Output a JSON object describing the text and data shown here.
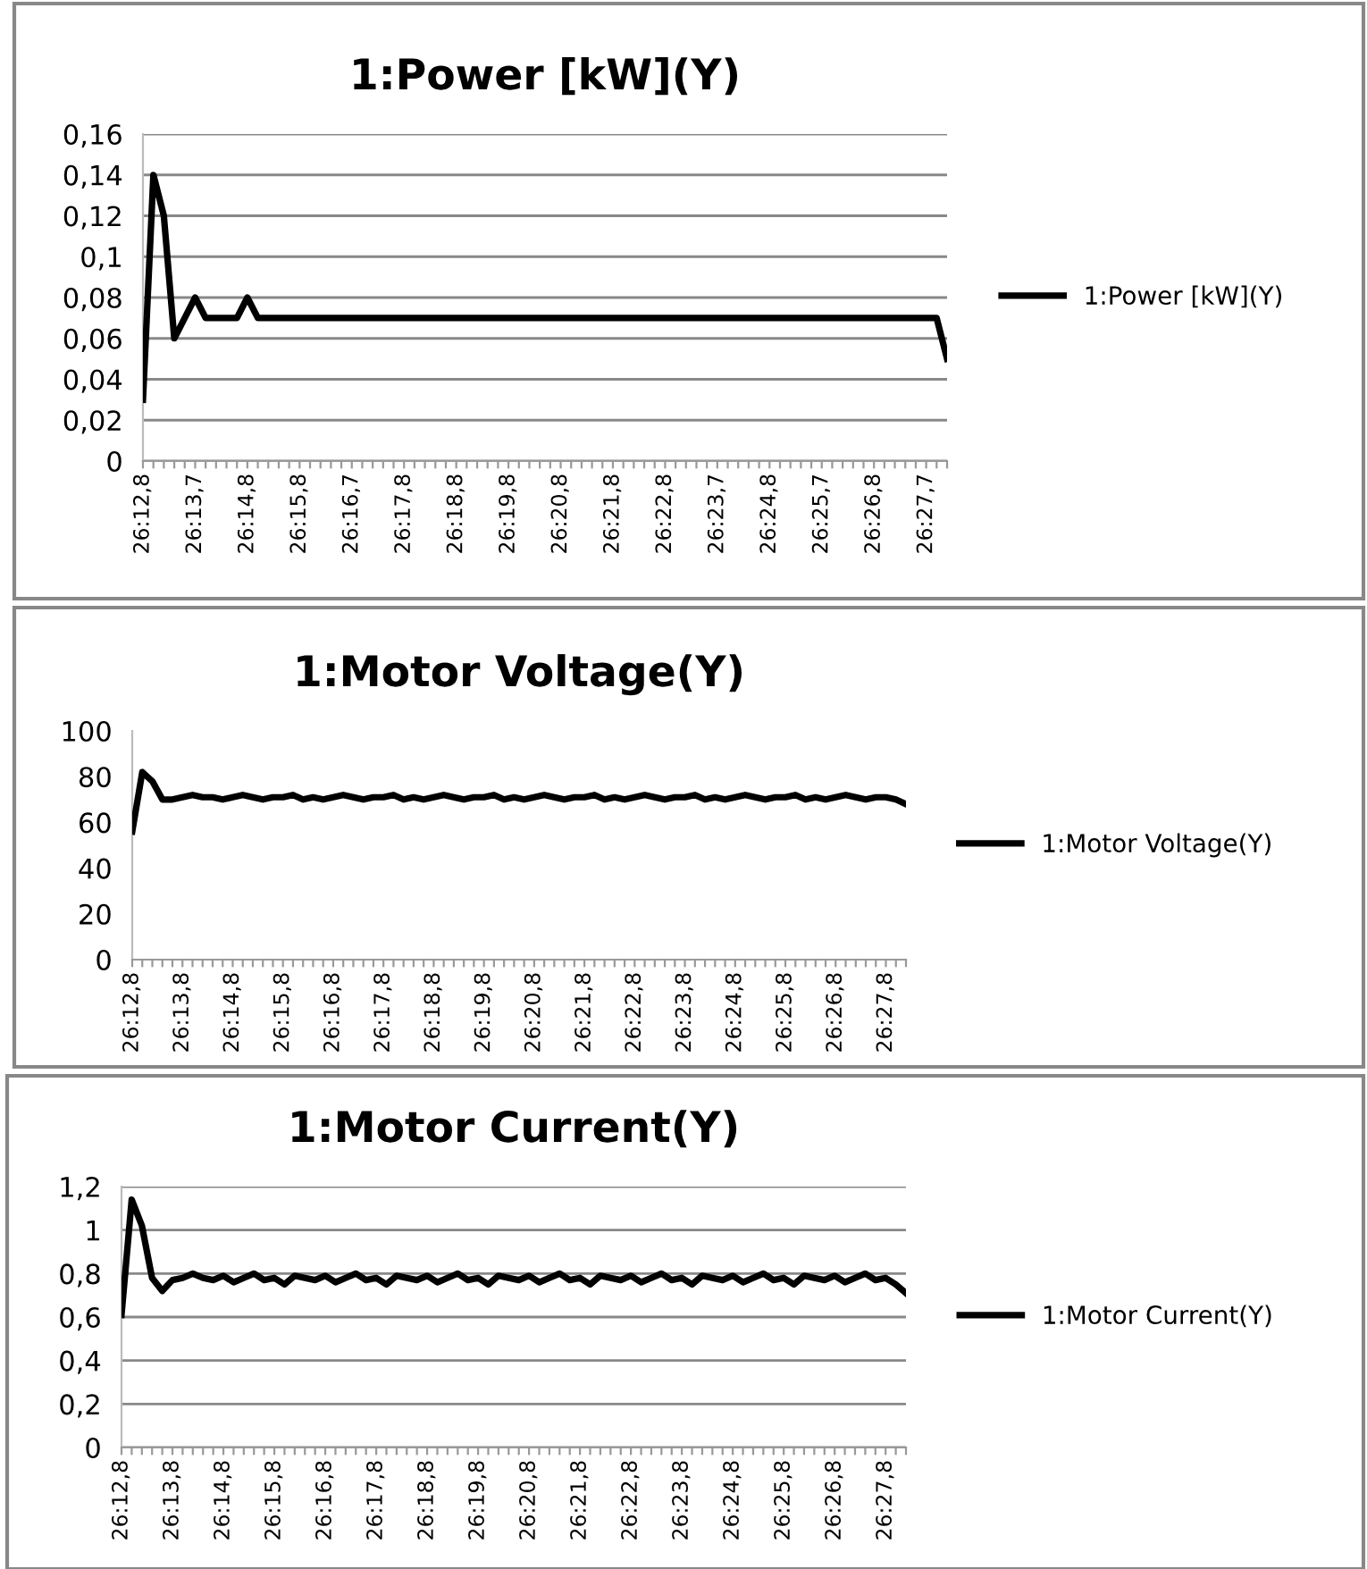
{
  "chart_data": [
    {
      "type": "line",
      "title": "1:Power [kW](Y)",
      "categories": [
        "26:12,8",
        null,
        null,
        null,
        null,
        "26:13,7",
        null,
        null,
        null,
        null,
        "26:14,8",
        null,
        null,
        null,
        null,
        "26:15,8",
        null,
        null,
        null,
        null,
        "26:16,7",
        null,
        null,
        null,
        null,
        "26:17,8",
        null,
        null,
        null,
        null,
        "26:18,8",
        null,
        null,
        null,
        null,
        "26:19,8",
        null,
        null,
        null,
        null,
        "26:20,8",
        null,
        null,
        null,
        null,
        "26:21,8",
        null,
        null,
        null,
        null,
        "26:22,8",
        null,
        null,
        null,
        null,
        "26:23,7",
        null,
        null,
        null,
        null,
        "26:24,8",
        null,
        null,
        null,
        null,
        "26:25,7",
        null,
        null,
        null,
        null,
        "26:26,8",
        null,
        null,
        null,
        null,
        "26:27,7",
        null,
        null
      ],
      "series": [
        {
          "name": "1:Power [kW](Y)",
          "color": "#000000",
          "values": [
            0.03,
            0.14,
            0.12,
            0.06,
            0.07,
            0.08,
            0.07,
            0.07,
            0.07,
            0.07,
            0.08,
            0.07,
            0.07,
            0.07,
            0.07,
            0.07,
            0.07,
            0.07,
            0.07,
            0.07,
            0.07,
            0.07,
            0.07,
            0.07,
            0.07,
            0.07,
            0.07,
            0.07,
            0.07,
            0.07,
            0.07,
            0.07,
            0.07,
            0.07,
            0.07,
            0.07,
            0.07,
            0.07,
            0.07,
            0.07,
            0.07,
            0.07,
            0.07,
            0.07,
            0.07,
            0.07,
            0.07,
            0.07,
            0.07,
            0.07,
            0.07,
            0.07,
            0.07,
            0.07,
            0.07,
            0.07,
            0.07,
            0.07,
            0.07,
            0.07,
            0.07,
            0.07,
            0.07,
            0.07,
            0.07,
            0.07,
            0.07,
            0.07,
            0.07,
            0.07,
            0.07,
            0.07,
            0.07,
            0.07,
            0.07,
            0.07,
            0.07,
            0.05
          ]
        }
      ],
      "ylim": [
        0,
        0.16
      ],
      "yticks": [
        0,
        {
          "value": 0.02,
          "label": "0,02"
        },
        {
          "value": 0.04,
          "label": "0,04"
        },
        {
          "value": 0.06,
          "label": "0,06"
        },
        {
          "value": 0.08,
          "label": "0,08"
        },
        {
          "value": 0.1,
          "label": "0,1"
        },
        {
          "value": 0.12,
          "label": "0,12"
        },
        {
          "value": 0.14,
          "label": "0,14"
        },
        {
          "value": 0.16,
          "label": "0,16"
        }
      ],
      "grid": "y",
      "legend": "right",
      "marker": "none",
      "line_style": "solid"
    },
    {
      "type": "line",
      "title": "1:Motor Voltage(Y)",
      "categories": [
        "26:12,8",
        null,
        null,
        null,
        null,
        "26:13,8",
        null,
        null,
        null,
        null,
        "26:14,8",
        null,
        null,
        null,
        null,
        "26:15,8",
        null,
        null,
        null,
        null,
        "26:16,8",
        null,
        null,
        null,
        null,
        "26:17,8",
        null,
        null,
        null,
        null,
        "26:18,8",
        null,
        null,
        null,
        null,
        "26:19,8",
        null,
        null,
        null,
        null,
        "26:20,8",
        null,
        null,
        null,
        null,
        "26:21,8",
        null,
        null,
        null,
        null,
        "26:22,8",
        null,
        null,
        null,
        null,
        "26:23,8",
        null,
        null,
        null,
        null,
        "26:24,8",
        null,
        null,
        null,
        null,
        "26:25,8",
        null,
        null,
        null,
        null,
        "26:26,8",
        null,
        null,
        null,
        null,
        "26:27,8",
        null,
        null
      ],
      "series": [
        {
          "name": "1:Motor Voltage(Y)",
          "color": "#000000",
          "values": [
            56,
            82,
            78,
            70,
            70,
            71,
            72,
            71,
            71,
            70,
            71,
            72,
            71,
            70,
            71,
            71,
            72,
            70,
            71,
            70,
            71,
            72,
            71,
            70,
            71,
            71,
            72,
            70,
            71,
            70,
            71,
            72,
            71,
            70,
            71,
            71,
            72,
            70,
            71,
            70,
            71,
            72,
            71,
            70,
            71,
            71,
            72,
            70,
            71,
            70,
            71,
            72,
            71,
            70,
            71,
            71,
            72,
            70,
            71,
            70,
            71,
            72,
            71,
            70,
            71,
            71,
            72,
            70,
            71,
            70,
            71,
            72,
            71,
            70,
            71,
            71,
            70,
            68
          ]
        }
      ],
      "ylim": [
        0,
        100
      ],
      "yticks": [
        0,
        20,
        40,
        60,
        80,
        100
      ],
      "legend": "right",
      "marker": "none",
      "line_style": "solid"
    },
    {
      "type": "line",
      "title": "1:Motor Current(Y)",
      "categories": [
        "26:12,8",
        null,
        null,
        null,
        null,
        "26:13,8",
        null,
        null,
        null,
        null,
        "26:14,8",
        null,
        null,
        null,
        null,
        "26:15,8",
        null,
        null,
        null,
        null,
        "26:16,8",
        null,
        null,
        null,
        null,
        "26:17,8",
        null,
        null,
        null,
        null,
        "26:18,8",
        null,
        null,
        null,
        null,
        "26:19,8",
        null,
        null,
        null,
        null,
        "26:20,8",
        null,
        null,
        null,
        null,
        "26:21,8",
        null,
        null,
        null,
        null,
        "26:22,8",
        null,
        null,
        null,
        null,
        "26:23,8",
        null,
        null,
        null,
        null,
        "26:24,8",
        null,
        null,
        null,
        null,
        "26:25,8",
        null,
        null,
        null,
        null,
        "26:26,8",
        null,
        null,
        null,
        null,
        "26:27,8",
        null,
        null
      ],
      "series": [
        {
          "name": "1:Motor Current(Y)",
          "color": "#000000",
          "values": [
            0.61,
            1.14,
            1.02,
            0.78,
            0.72,
            0.77,
            0.78,
            0.8,
            0.78,
            0.77,
            0.79,
            0.76,
            0.78,
            0.8,
            0.77,
            0.78,
            0.75,
            0.79,
            0.78,
            0.77,
            0.79,
            0.76,
            0.78,
            0.8,
            0.77,
            0.78,
            0.75,
            0.79,
            0.78,
            0.77,
            0.79,
            0.76,
            0.78,
            0.8,
            0.77,
            0.78,
            0.75,
            0.79,
            0.78,
            0.77,
            0.79,
            0.76,
            0.78,
            0.8,
            0.77,
            0.78,
            0.75,
            0.79,
            0.78,
            0.77,
            0.79,
            0.76,
            0.78,
            0.8,
            0.77,
            0.78,
            0.75,
            0.79,
            0.78,
            0.77,
            0.79,
            0.76,
            0.78,
            0.8,
            0.77,
            0.78,
            0.75,
            0.79,
            0.78,
            0.77,
            0.79,
            0.76,
            0.78,
            0.8,
            0.77,
            0.78,
            0.75,
            0.71
          ]
        }
      ],
      "ylim": [
        0,
        1.2
      ],
      "yticks": [
        0,
        {
          "value": 0.2,
          "label": "0,2"
        },
        {
          "value": 0.4,
          "label": "0,4"
        },
        {
          "value": 0.6,
          "label": "0,6"
        },
        {
          "value": 0.8,
          "label": "0,8"
        },
        1,
        {
          "value": 1.2,
          "label": "1,2"
        }
      ],
      "grid": "y",
      "legend": "right",
      "marker": "none",
      "line_style": "solid"
    }
  ]
}
